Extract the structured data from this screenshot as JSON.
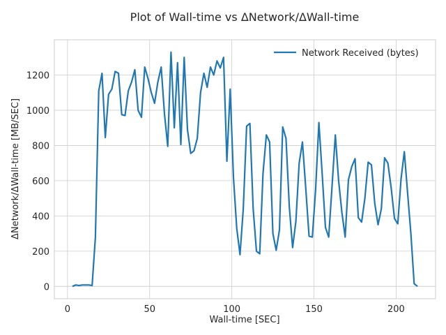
{
  "chart_data": {
    "type": "line",
    "title": "Plot of Wall-time vs ΔNetwork/ΔWall-time",
    "xlabel": "Wall-time [SEC]",
    "ylabel": "ΔNetwork/ΔWall-time [MB/SEC]",
    "xlim": [
      -8,
      224
    ],
    "ylim": [
      -70,
      1400
    ],
    "xticks": [
      0,
      50,
      100,
      150,
      200
    ],
    "yticks": [
      0,
      200,
      400,
      600,
      800,
      1000,
      1200
    ],
    "grid": true,
    "legend_position": "top-right",
    "colors": {
      "series": "#1f77b4",
      "grid": "#cccccc",
      "frame": "#cccccc"
    },
    "series": [
      {
        "name": "Network Received (bytes)",
        "color": "#1f77b4",
        "x": [
          3,
          5,
          7,
          9,
          11,
          13,
          15,
          17,
          19,
          21,
          23,
          25,
          27,
          29,
          31,
          33,
          35,
          37,
          39,
          41,
          43,
          45,
          47,
          49,
          51,
          53,
          55,
          57,
          59,
          61,
          63,
          65,
          67,
          69,
          71,
          73,
          75,
          77,
          79,
          81,
          83,
          85,
          87,
          89,
          91,
          93,
          95,
          97,
          99,
          101,
          103,
          105,
          107,
          109,
          111,
          113,
          115,
          117,
          119,
          121,
          123,
          125,
          127,
          129,
          131,
          133,
          135,
          137,
          139,
          141,
          143,
          145,
          147,
          149,
          151,
          153,
          155,
          157,
          159,
          161,
          163,
          165,
          167,
          169,
          171,
          173,
          175,
          177,
          179,
          181,
          183,
          185,
          187,
          189,
          191,
          193,
          195,
          197,
          199,
          201,
          203,
          205,
          207,
          209,
          211,
          213
        ],
        "values": [
          0,
          8,
          5,
          8,
          8,
          8,
          5,
          280,
          1110,
          1210,
          845,
          1090,
          1120,
          1220,
          1210,
          975,
          970,
          1110,
          1160,
          1230,
          1000,
          960,
          1245,
          1180,
          1100,
          1040,
          1160,
          1245,
          980,
          795,
          1330,
          900,
          1270,
          805,
          1300,
          890,
          755,
          770,
          840,
          1100,
          1210,
          1130,
          1245,
          1200,
          1280,
          1240,
          1300,
          710,
          1120,
          620,
          330,
          180,
          440,
          910,
          925,
          440,
          200,
          185,
          640,
          860,
          820,
          300,
          205,
          320,
          905,
          840,
          450,
          220,
          370,
          700,
          820,
          560,
          285,
          280,
          550,
          930,
          640,
          335,
          280,
          570,
          860,
          600,
          420,
          280,
          605,
          680,
          725,
          390,
          365,
          500,
          705,
          690,
          470,
          350,
          440,
          730,
          700,
          560,
          385,
          355,
          610,
          765,
          530,
          300,
          15,
          0
        ]
      }
    ]
  }
}
